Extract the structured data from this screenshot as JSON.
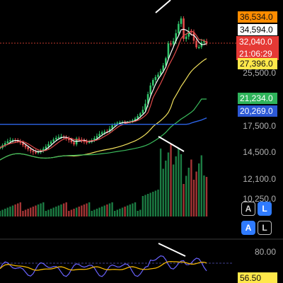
{
  "chart_data": {
    "type": "line",
    "title": "",
    "xlabel": "",
    "ylabel": "",
    "ylim": [
      10250,
      40000
    ],
    "grid": false,
    "price_axis": {
      "ticks": [
        {
          "text": "25,500.0",
          "value": 25500
        },
        {
          "text": "17,500.0",
          "value": 17500
        },
        {
          "text": "14,500.0",
          "value": 14500
        },
        {
          "text": "12,100.0",
          "value": 12100
        },
        {
          "text": "10,250.0",
          "value": 10250
        }
      ],
      "labels": [
        {
          "text": "36,534.0",
          "bg": "#ff8c00",
          "fg": "#111111"
        },
        {
          "text": "34,594.0",
          "bg": "#ffffff",
          "fg": "#000000"
        },
        {
          "text": "32,040.0",
          "text2": "21:06:29",
          "bg": "#e53935",
          "fg": "#ffffff"
        },
        {
          "text": "27,396.0",
          "bg": "#ffe84a",
          "fg": "#111111"
        },
        {
          "text": "21,234.0",
          "bg": "#2fb35b",
          "fg": "#ffffff"
        },
        {
          "text": "20,269.0",
          "bg": "#2d59d6",
          "fg": "#ffffff"
        }
      ]
    },
    "rsi": {
      "level_text": "80.00",
      "value_text": "56.50"
    }
  },
  "ui": {
    "buttons_upper": {
      "a": "A",
      "l": "L"
    },
    "buttons_lower": {
      "a": "A",
      "l": "L"
    }
  },
  "colors": {
    "bg": "#000000",
    "up": "#31c46a",
    "down": "#e24b4b",
    "ma_white": "#ffffff",
    "ma_red": "#e24b4b",
    "ma_yellow": "#f2e15d",
    "ma_green": "#3bbd5d",
    "ma_blue": "#2c63e6",
    "rsi": "#6a63ff",
    "rsi_avg": "#f0b400",
    "dashed_red": "#c0392b",
    "divider": "#3a3a3a"
  }
}
